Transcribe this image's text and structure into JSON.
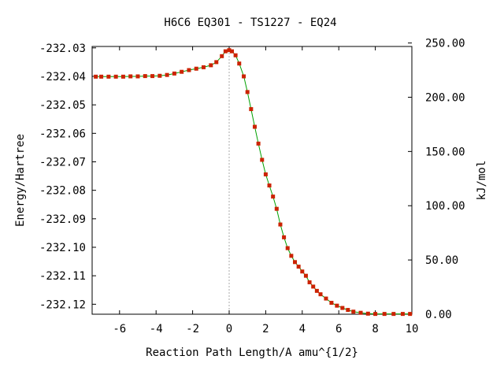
{
  "chart_data": {
    "type": "line",
    "title": "H6C6   EQ301 - TS1227 - EQ24",
    "xlabel": "Reaction Path Length/A amu^{1/2}",
    "ylabel": "Energy/Hartree",
    "y2label": "kJ/mol",
    "xlim": [
      -7.5,
      10
    ],
    "ylim": [
      -232.1235,
      -232.0295
    ],
    "y2lim": [
      0.0,
      246.8
    ],
    "xticks": [
      "-6",
      "-4",
      "-2",
      "0",
      "2",
      "4",
      "6",
      "8",
      "10"
    ],
    "xtick_values": [
      -6,
      -4,
      -2,
      0,
      2,
      4,
      6,
      8,
      10
    ],
    "yticks": [
      "-232.03",
      "-232.04",
      "-232.05",
      "-232.06",
      "-232.07",
      "-232.08",
      "-232.09",
      "-232.10",
      "-232.11",
      "-232.12"
    ],
    "ytick_values": [
      -232.03,
      -232.04,
      -232.05,
      -232.06,
      -232.07,
      -232.08,
      -232.09,
      -232.1,
      -232.11,
      -232.12
    ],
    "y2ticks": [
      "0.00",
      "50.00",
      "100.00",
      "150.00",
      "200.00",
      "250.00"
    ],
    "y2tick_values": [
      0,
      50,
      100,
      150,
      200,
      250
    ],
    "ts_marker_x": 0.0,
    "grid": false,
    "colors": {
      "line": "#00a000",
      "points": "#cc2200",
      "marker_line": "#aaaaaa"
    },
    "series": [
      {
        "points": [
          [
            -7.3,
            -232.0401
          ],
          [
            -7.0,
            -232.0401
          ],
          [
            -6.6,
            -232.0401
          ],
          [
            -6.2,
            -232.0401
          ],
          [
            -5.8,
            -232.0401
          ],
          [
            -5.4,
            -232.04
          ],
          [
            -5.0,
            -232.04
          ],
          [
            -4.6,
            -232.0399
          ],
          [
            -4.2,
            -232.0399
          ],
          [
            -3.8,
            -232.0398
          ],
          [
            -3.4,
            -232.0395
          ],
          [
            -3.0,
            -232.039
          ],
          [
            -2.6,
            -232.0384
          ],
          [
            -2.2,
            -232.0378
          ],
          [
            -1.8,
            -232.0373
          ],
          [
            -1.4,
            -232.0368
          ],
          [
            -1.0,
            -232.0361
          ],
          [
            -0.7,
            -232.035
          ],
          [
            -0.4,
            -232.0329
          ],
          [
            -0.2,
            -232.0312
          ],
          [
            0.0,
            -232.0308
          ],
          [
            0.15,
            -232.0312
          ],
          [
            0.35,
            -232.0326
          ],
          [
            0.55,
            -232.0355
          ],
          [
            0.8,
            -232.04
          ],
          [
            1.0,
            -232.0455
          ],
          [
            1.2,
            -232.0515
          ],
          [
            1.4,
            -232.0577
          ],
          [
            1.6,
            -232.0636
          ],
          [
            1.8,
            -232.0693
          ],
          [
            2.0,
            -232.0744
          ],
          [
            2.2,
            -232.0783
          ],
          [
            2.4,
            -232.0822
          ],
          [
            2.6,
            -232.0865
          ],
          [
            2.8,
            -232.092
          ],
          [
            3.0,
            -232.0965
          ],
          [
            3.2,
            -232.1003
          ],
          [
            3.4,
            -232.103
          ],
          [
            3.6,
            -232.1052
          ],
          [
            3.8,
            -232.1068
          ],
          [
            4.0,
            -232.1085
          ],
          [
            4.2,
            -232.11
          ],
          [
            4.4,
            -232.1123
          ],
          [
            4.6,
            -232.1138
          ],
          [
            4.8,
            -232.1153
          ],
          [
            5.0,
            -232.1165
          ],
          [
            5.3,
            -232.118
          ],
          [
            5.6,
            -232.1195
          ],
          [
            5.9,
            -232.1205
          ],
          [
            6.2,
            -232.1213
          ],
          [
            6.5,
            -232.122
          ],
          [
            6.8,
            -232.1226
          ],
          [
            7.2,
            -232.123
          ],
          [
            7.6,
            -232.1233
          ],
          [
            8.0,
            -232.1234
          ],
          [
            8.5,
            -232.1234
          ],
          [
            9.0,
            -232.1234
          ],
          [
            9.5,
            -232.1234
          ],
          [
            9.9,
            -232.1234
          ]
        ]
      }
    ]
  }
}
